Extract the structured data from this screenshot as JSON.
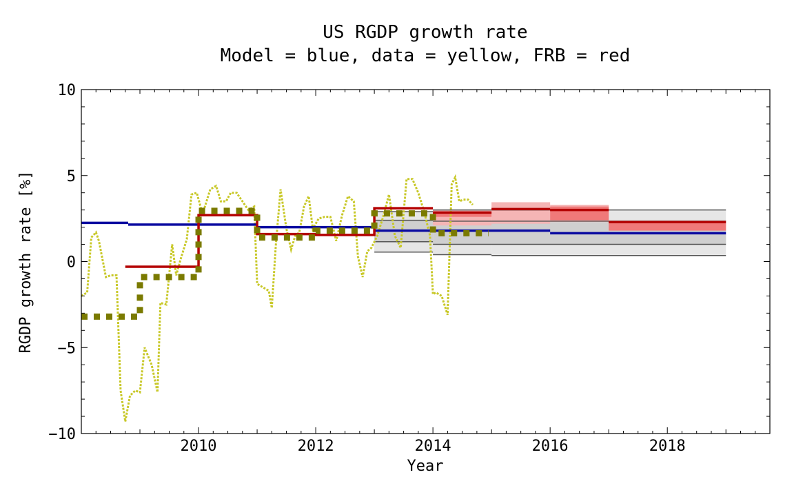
{
  "chart_data": {
    "type": "line",
    "title": "US RGDP growth rate",
    "subtitle": "Model = blue, data = yellow, FRB = red",
    "xlabel": "Year",
    "ylabel": "RGDP growth rate [%]",
    "xlim": [
      2008.0,
      2019.75
    ],
    "ylim": [
      -10,
      10
    ],
    "x_ticks": [
      2010,
      2012,
      2014,
      2016,
      2018
    ],
    "y_ticks": [
      -10,
      -5,
      0,
      5,
      10
    ],
    "x_tick_labels": [
      "2010",
      "2012",
      "2014",
      "2016",
      "2018"
    ],
    "y_tick_labels": [
      "−10",
      "−5",
      "0",
      "5",
      "10"
    ],
    "grid": false,
    "colors": {
      "model": "#0a0aa0",
      "data_line": "#c8c828",
      "data_annual": "#7a7a00",
      "frb": "#b40000",
      "frb_band_light": "#f5b5b5",
      "frb_band_dark": "#ee6f6f",
      "model_band": "#e6e6e6",
      "model_band_inner": "#cfcfcf",
      "model_band_lines": "#555555"
    },
    "series": [
      {
        "key": "model",
        "style": "step",
        "steps": [
          {
            "x0": 2008.0,
            "x1": 2008.8,
            "y": 2.25
          },
          {
            "x0": 2008.8,
            "x1": 2011.0,
            "y": 2.15
          },
          {
            "x0": 2011.0,
            "x1": 2013.0,
            "y": 2.0
          },
          {
            "x0": 2013.0,
            "x1": 2016.0,
            "y": 1.8
          },
          {
            "x0": 2016.0,
            "x1": 2019.0,
            "y": 1.65
          }
        ]
      },
      {
        "key": "frb",
        "style": "step",
        "steps": [
          {
            "x0": 2008.75,
            "x1": 2010.0,
            "y": -0.3
          },
          {
            "x0": 2010.0,
            "x1": 2011.0,
            "y": 2.7
          },
          {
            "x0": 2011.0,
            "x1": 2012.0,
            "y": 1.6
          },
          {
            "x0": 2012.0,
            "x1": 2013.0,
            "y": 1.55
          },
          {
            "x0": 2013.0,
            "x1": 2014.0,
            "y": 3.1
          },
          {
            "x0": 2014.0,
            "x1": 2015.0,
            "y": 2.85
          },
          {
            "x0": 2015.0,
            "x1": 2016.0,
            "y": 3.05
          },
          {
            "x0": 2016.0,
            "x1": 2017.0,
            "y": 3.0
          },
          {
            "x0": 2017.0,
            "x1": 2019.0,
            "y": 2.3
          }
        ]
      },
      {
        "key": "data_annual",
        "style": "dotted-step",
        "steps": [
          {
            "x0": 2008.0,
            "x1": 2009.0,
            "y": -3.2
          },
          {
            "x0": 2009.0,
            "x1": 2010.0,
            "y": -0.9
          },
          {
            "x0": 2010.0,
            "x1": 2011.0,
            "y": 2.95
          },
          {
            "x0": 2011.0,
            "x1": 2012.0,
            "y": 1.4
          },
          {
            "x0": 2012.0,
            "x1": 2013.0,
            "y": 1.8
          },
          {
            "x0": 2013.0,
            "x1": 2014.0,
            "y": 2.8
          },
          {
            "x0": 2014.0,
            "x1": 2014.95,
            "y": 1.65
          }
        ]
      },
      {
        "key": "data_line",
        "style": "dotted",
        "x": [
          2008.0,
          2008.1,
          2008.17,
          2008.25,
          2008.3,
          2008.42,
          2008.5,
          2008.6,
          2008.67,
          2008.75,
          2008.83,
          2008.92,
          2009.0,
          2009.08,
          2009.2,
          2009.3,
          2009.35,
          2009.45,
          2009.55,
          2009.62,
          2009.7,
          2009.8,
          2009.88,
          2009.97,
          2010.05,
          2010.1,
          2010.2,
          2010.3,
          2010.38,
          2010.47,
          2010.55,
          2010.65,
          2010.75,
          2010.85,
          2010.95,
          2011.0,
          2011.1,
          2011.2,
          2011.25,
          2011.32,
          2011.4,
          2011.5,
          2011.58,
          2011.65,
          2011.72,
          2011.8,
          2011.88,
          2011.95,
          2012.05,
          2012.15,
          2012.25,
          2012.35,
          2012.45,
          2012.55,
          2012.65,
          2012.72,
          2012.8,
          2012.88,
          2012.95,
          2013.05,
          2013.15,
          2013.25,
          2013.35,
          2013.45,
          2013.55,
          2013.65,
          2013.75,
          2013.85,
          2013.95,
          2014.0,
          2014.05,
          2014.15,
          2014.25,
          2014.32,
          2014.38,
          2014.45,
          2014.52,
          2014.6,
          2014.68
        ],
        "y": [
          -2.0,
          -1.8,
          1.4,
          1.7,
          1.2,
          -0.9,
          -0.8,
          -0.8,
          -7.5,
          -9.3,
          -7.8,
          -7.5,
          -7.6,
          -5.0,
          -6.0,
          -7.6,
          -2.4,
          -2.5,
          1.0,
          -0.8,
          0.2,
          1.3,
          3.9,
          4.0,
          3.0,
          3.1,
          4.2,
          4.4,
          3.5,
          3.5,
          4.0,
          4.0,
          3.5,
          3.0,
          3.2,
          -1.3,
          -1.5,
          -1.7,
          -2.7,
          1.0,
          4.2,
          1.9,
          0.7,
          1.5,
          1.7,
          3.2,
          3.8,
          1.9,
          2.5,
          2.6,
          2.6,
          1.2,
          2.7,
          3.8,
          3.5,
          0.3,
          -0.9,
          0.6,
          0.8,
          1.5,
          2.6,
          3.9,
          1.5,
          0.8,
          4.8,
          4.8,
          4.0,
          2.9,
          1.5,
          -1.9,
          -1.8,
          -2.0,
          -3.1,
          4.5,
          4.9,
          3.5,
          3.6,
          3.6,
          3.3
        ]
      }
    ],
    "bands": [
      {
        "key": "model_band",
        "x0": 2013.0,
        "x1": 2014.0,
        "y0": 0.55,
        "y1": 2.9
      },
      {
        "key": "model_band",
        "x0": 2014.0,
        "x1": 2015.0,
        "y0": 0.4,
        "y1": 3.0
      },
      {
        "key": "model_band",
        "x0": 2015.0,
        "x1": 2019.0,
        "y0": 0.35,
        "y1": 3.0
      },
      {
        "key": "model_band_inner",
        "x0": 2013.0,
        "x1": 2014.0,
        "y0": 1.15,
        "y1": 2.4
      },
      {
        "key": "model_band_inner",
        "x0": 2014.0,
        "x1": 2019.0,
        "y0": 1.0,
        "y1": 2.35
      },
      {
        "key": "frb_band_light",
        "x0": 2014.0,
        "x1": 2015.0,
        "y0": 2.1,
        "y1": 3.0
      },
      {
        "key": "frb_band_light",
        "x0": 2015.0,
        "x1": 2016.0,
        "y0": 2.2,
        "y1": 3.45
      },
      {
        "key": "frb_band_light",
        "x0": 2016.0,
        "x1": 2017.0,
        "y0": 2.3,
        "y1": 3.3
      },
      {
        "key": "frb_band_light",
        "x0": 2017.0,
        "x1": 2019.0,
        "y0": 1.8,
        "y1": 2.3
      },
      {
        "key": "frb_band_dark",
        "x0": 2014.0,
        "x1": 2015.0,
        "y0": 2.6,
        "y1": 2.9
      },
      {
        "key": "frb_band_dark",
        "x0": 2016.0,
        "x1": 2017.0,
        "y0": 2.4,
        "y1": 3.2
      },
      {
        "key": "frb_band_dark",
        "x0": 2017.0,
        "x1": 2019.0,
        "y0": 1.8,
        "y1": 2.3
      }
    ]
  }
}
